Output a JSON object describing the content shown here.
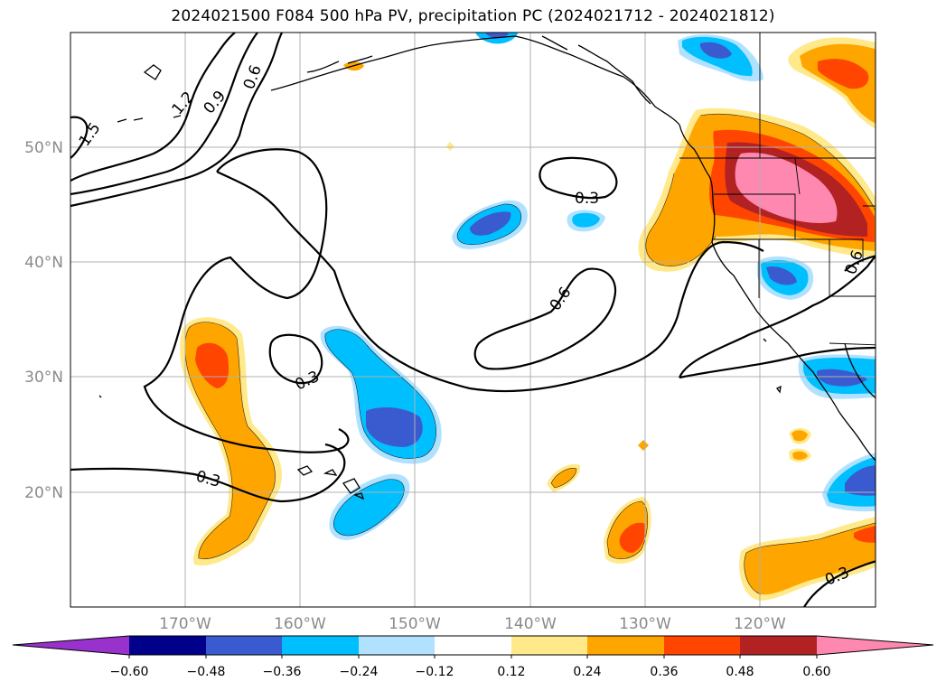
{
  "title": "2024021500 F084 500 hPa PV, precipitation PC (2024021712 - 2024021812)",
  "map": {
    "lon_range": [
      -180,
      -110
    ],
    "lat_range": [
      10,
      60
    ],
    "lon_ticks": [
      "170°W",
      "160°W",
      "150°W",
      "140°W",
      "130°W",
      "120°W"
    ],
    "lat_ticks": [
      "50°N",
      "40°N",
      "30°N",
      "20°N"
    ],
    "grid": true,
    "tick_label_color": "#8a8a8a"
  },
  "pv_contour_labels": [
    "1.5",
    "1.2",
    "0.9",
    "0.6",
    "0.3",
    "0.6",
    "0.3",
    "0.3",
    "0.6",
    "0.3"
  ],
  "colorbar": {
    "levels": [
      "−0.60",
      "−0.48",
      "−0.36",
      "−0.24",
      "−0.12",
      "0.12",
      "0.24",
      "0.36",
      "0.48",
      "0.60"
    ],
    "colors": [
      "#9932cc",
      "#00008b",
      "#3a5bd0",
      "#00bfff",
      "#b0e2ff",
      "#ffffff",
      "#ffe98a",
      "#ffa500",
      "#ff4500",
      "#b22222",
      "#ff88b0"
    ],
    "extend": "both"
  },
  "colors": {
    "neg_dark": "#3a5bd0",
    "neg_mid": "#00bfff",
    "neg_light": "#b0e2ff",
    "pos_light": "#ffe98a",
    "pos_mid": "#ffa500",
    "pos_strong": "#ff4500",
    "pos_dark": "#b22222",
    "pos_max": "#ff88b0",
    "grid": "#b0b0b0"
  }
}
